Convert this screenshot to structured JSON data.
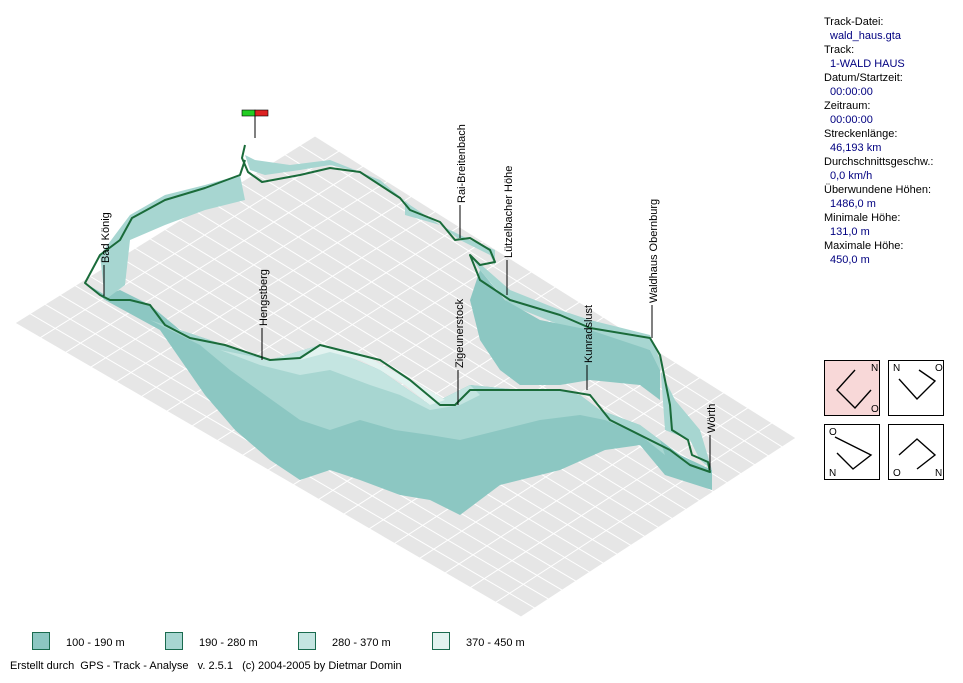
{
  "info": [
    {
      "label": "Track-Datei:",
      "value": "wald_haus.gta"
    },
    {
      "label": "Track:",
      "value": "1-WALD HAUS"
    },
    {
      "label": "Datum/Startzeit:",
      "value": "00:00:00"
    },
    {
      "label": "Zeitraum:",
      "value": "00:00:00"
    },
    {
      "label": "Streckenlänge:",
      "value": "46,193 km"
    },
    {
      "label": "Durchschnittsgeschw.:",
      "value": "0,0 km/h"
    },
    {
      "label": "Überwundene Höhen:",
      "value": "1486,0 m"
    },
    {
      "label": "Minimale Höhe:",
      "value": "131,0 m"
    },
    {
      "label": "Maximale Höhe:",
      "value": "450,0 m"
    }
  ],
  "waypoints": [
    "Bad König",
    "Hengstberg",
    "Zigeunerstock",
    "Rai-Breitenbach",
    "Lützelbacher Höhe",
    "Kunradslust",
    "Waldhaus Obernburg",
    "Wörth"
  ],
  "view_buttons": [
    {
      "corners": [
        "N",
        "O"
      ],
      "active": true
    },
    {
      "corners": [
        "N",
        "O"
      ],
      "active": false
    },
    {
      "corners": [
        "O",
        "N"
      ],
      "active": false
    },
    {
      "corners": [
        "O",
        "N"
      ],
      "active": false
    }
  ],
  "legend": [
    {
      "label": "100 - 190 m",
      "color": "#8cc7c2"
    },
    {
      "label": "190 - 280 m",
      "color": "#a7d6d1"
    },
    {
      "label": "280 - 370 m",
      "color": "#c4e5e1"
    },
    {
      "label": "370 - 450 m",
      "color": "#e2f3f0"
    }
  ],
  "colors": {
    "plane": "#e6e6e6",
    "grid": "#ffffff",
    "wall_dark": "#8cc7c2",
    "track": "#1a6b3a",
    "flag_start": "#22cc22",
    "flag_end": "#dd2222"
  },
  "footer": "Erstellt durch  GPS - Track - Analyse   v. 2.5.1   (c) 2004-2005 by Dietmar Domin"
}
